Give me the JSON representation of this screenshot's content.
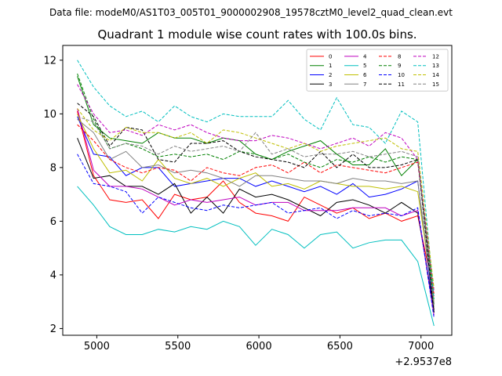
{
  "suptitle": "Data file: modeM0/AS1T03_005T01_9000002908_19578cztM0_level2_quad_clean.evt",
  "chart_data": {
    "type": "line",
    "title": "Quadrant 1 module wise count rates with 100.0s bins.",
    "xlabel": "",
    "ylabel": "",
    "x_offset_label": "+2.9537e8",
    "xlim": [
      4790,
      7190
    ],
    "ylim": [
      1.75,
      12.55
    ],
    "xticks": [
      5000,
      5500,
      6000,
      6500,
      7000
    ],
    "yticks": [
      2,
      4,
      6,
      8,
      10,
      12
    ],
    "legend_position": "top-right",
    "legend_columns": 4,
    "x": [
      4880,
      4980,
      5080,
      5180,
      5280,
      5380,
      5480,
      5580,
      5680,
      5780,
      5880,
      5980,
      6080,
      6180,
      6280,
      6380,
      6480,
      6580,
      6680,
      6780,
      6880,
      6980,
      7080
    ],
    "series": [
      {
        "name": "0",
        "color": "#ff0000",
        "dash": "solid",
        "values": [
          10.1,
          7.7,
          6.8,
          6.7,
          6.8,
          6.1,
          7.0,
          6.8,
          6.9,
          7.5,
          6.7,
          6.3,
          6.2,
          6.0,
          6.9,
          6.6,
          6.3,
          6.5,
          6.1,
          6.3,
          6.0,
          6.2,
          3.3
        ]
      },
      {
        "name": "1",
        "color": "#008000",
        "dash": "solid",
        "values": [
          11.4,
          9.6,
          9.1,
          9.0,
          8.9,
          9.3,
          9.1,
          9.1,
          8.9,
          9.1,
          9.0,
          8.5,
          8.3,
          8.6,
          8.8,
          9.0,
          8.5,
          8.1,
          8.1,
          8.7,
          7.7,
          8.3,
          2.9
        ]
      },
      {
        "name": "2",
        "color": "#0000ff",
        "dash": "solid",
        "values": [
          9.9,
          8.5,
          8.4,
          7.7,
          8.0,
          8.0,
          7.3,
          7.4,
          7.5,
          7.6,
          7.6,
          7.3,
          7.5,
          7.3,
          7.1,
          7.3,
          7.0,
          7.4,
          6.9,
          7.0,
          7.2,
          7.5,
          2.6
        ]
      },
      {
        "name": "3",
        "color": "#000000",
        "dash": "solid",
        "values": [
          9.1,
          7.6,
          7.7,
          7.3,
          7.3,
          7.0,
          7.4,
          6.3,
          6.9,
          6.3,
          7.2,
          6.9,
          7.0,
          6.8,
          6.5,
          6.2,
          6.7,
          6.8,
          6.6,
          6.3,
          6.7,
          6.3,
          2.7
        ]
      },
      {
        "name": "4",
        "color": "#bf00bf",
        "dash": "solid",
        "values": [
          10.2,
          7.9,
          7.3,
          7.3,
          7.2,
          6.9,
          6.6,
          6.8,
          6.7,
          6.8,
          6.9,
          6.6,
          6.7,
          6.7,
          6.4,
          6.4,
          6.4,
          6.5,
          6.5,
          6.5,
          6.2,
          6.4,
          2.5
        ]
      },
      {
        "name": "5",
        "color": "#00bfbf",
        "dash": "solid",
        "values": [
          7.3,
          6.6,
          5.8,
          5.5,
          5.5,
          5.7,
          5.6,
          5.8,
          5.7,
          6.0,
          5.8,
          5.1,
          5.7,
          5.5,
          5.0,
          5.5,
          5.6,
          5.0,
          5.2,
          5.3,
          5.3,
          4.5,
          2.1
        ]
      },
      {
        "name": "6",
        "color": "#bfbf00",
        "dash": "solid",
        "values": [
          10.0,
          8.7,
          7.8,
          7.9,
          7.5,
          8.3,
          7.6,
          7.4,
          7.6,
          7.3,
          7.6,
          7.8,
          7.3,
          7.4,
          7.2,
          7.5,
          7.4,
          7.3,
          7.3,
          7.2,
          7.3,
          7.1,
          3.0
        ]
      },
      {
        "name": "7",
        "color": "#808080",
        "dash": "solid",
        "values": [
          9.8,
          9.3,
          8.3,
          8.6,
          8.0,
          8.1,
          7.8,
          7.9,
          7.8,
          7.6,
          7.3,
          7.7,
          7.7,
          7.6,
          7.5,
          7.5,
          7.4,
          7.6,
          7.5,
          7.5,
          7.4,
          7.5,
          2.8
        ]
      },
      {
        "name": "8",
        "color": "#ff0000",
        "dash": "dashed",
        "values": [
          9.6,
          9.0,
          8.3,
          8.0,
          7.8,
          8.0,
          7.9,
          7.5,
          8.0,
          7.8,
          7.7,
          8.0,
          8.1,
          7.8,
          8.2,
          7.8,
          8.1,
          8.0,
          7.9,
          7.8,
          8.0,
          8.2,
          3.2
        ]
      },
      {
        "name": "9",
        "color": "#008000",
        "dash": "dashed",
        "values": [
          11.5,
          9.8,
          8.7,
          8.9,
          8.7,
          8.4,
          8.5,
          8.4,
          8.5,
          8.3,
          8.6,
          8.5,
          8.3,
          8.5,
          8.2,
          8.0,
          8.3,
          8.2,
          8.4,
          8.2,
          8.4,
          8.3,
          3.1
        ]
      },
      {
        "name": "10",
        "color": "#0000ff",
        "dash": "dashed",
        "values": [
          8.5,
          7.4,
          7.3,
          7.1,
          6.3,
          6.9,
          6.7,
          6.5,
          6.4,
          6.6,
          6.5,
          6.6,
          6.7,
          6.3,
          6.4,
          6.5,
          6.1,
          6.4,
          6.2,
          6.3,
          6.2,
          6.5,
          2.4
        ]
      },
      {
        "name": "11",
        "color": "#000000",
        "dash": "dashed",
        "values": [
          10.4,
          9.9,
          8.8,
          9.5,
          9.4,
          8.3,
          8.2,
          8.9,
          8.9,
          9.0,
          8.6,
          8.4,
          8.3,
          8.2,
          8.0,
          8.6,
          8.0,
          8.5,
          8.0,
          8.0,
          8.1,
          8.3,
          2.6
        ]
      },
      {
        "name": "12",
        "color": "#bf00bf",
        "dash": "dashed",
        "values": [
          11.1,
          10.0,
          9.3,
          9.4,
          9.2,
          9.6,
          9.4,
          9.6,
          9.3,
          9.1,
          9.0,
          9.0,
          9.2,
          9.1,
          8.9,
          8.7,
          8.9,
          9.1,
          8.8,
          9.3,
          9.1,
          8.3,
          3.4
        ]
      },
      {
        "name": "13",
        "color": "#00bfbf",
        "dash": "dashed",
        "values": [
          12.0,
          11.0,
          10.3,
          9.9,
          10.1,
          9.7,
          10.3,
          9.9,
          9.7,
          10.0,
          9.9,
          9.9,
          9.9,
          10.5,
          9.8,
          9.4,
          10.6,
          9.6,
          9.5,
          8.9,
          10.1,
          9.7,
          3.1
        ]
      },
      {
        "name": "14",
        "color": "#bfbf00",
        "dash": "dashed",
        "values": [
          10.2,
          9.4,
          9.0,
          9.5,
          9.3,
          9.3,
          9.1,
          9.3,
          8.9,
          9.4,
          9.3,
          9.1,
          8.9,
          8.7,
          8.9,
          8.6,
          8.8,
          8.9,
          9.0,
          9.1,
          8.7,
          8.6,
          3.5
        ]
      },
      {
        "name": "15",
        "color": "#808080",
        "dash": "dashed",
        "values": [
          9.9,
          9.7,
          8.7,
          8.9,
          8.8,
          8.5,
          8.8,
          8.6,
          8.7,
          8.8,
          8.6,
          9.3,
          8.5,
          8.7,
          8.4,
          8.5,
          8.5,
          8.6,
          8.4,
          8.5,
          8.6,
          8.4,
          2.9
        ]
      }
    ]
  }
}
